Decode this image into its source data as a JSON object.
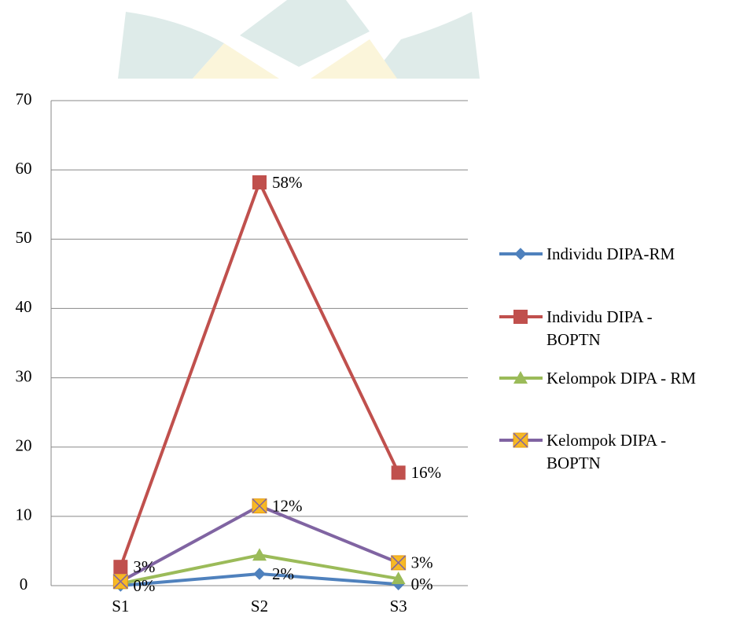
{
  "chart_data": {
    "type": "line",
    "categories": [
      "S1",
      "S2",
      "S3"
    ],
    "series": [
      {
        "name": "Individu DIPA-RM",
        "color": "#4f81bd",
        "marker": "diamond",
        "values": [
          0,
          1.7,
          0.2
        ],
        "value_labels": [
          "0%",
          "2%",
          "0%"
        ]
      },
      {
        "name": "Individu DIPA - BOPTN",
        "color": "#c0504d",
        "marker": "square",
        "values": [
          2.7,
          58.2,
          16.3
        ],
        "value_labels": [
          "3%",
          "58%",
          "16%"
        ]
      },
      {
        "name": "Kelompok DIPA - RM",
        "color": "#9bbb59",
        "marker": "triangle",
        "values": [
          0.3,
          4.4,
          1.0
        ],
        "value_labels": [
          null,
          null,
          null
        ]
      },
      {
        "name": "Kelompok DIPA - BOPTN",
        "color": "#8064a2",
        "marker": "x-square",
        "values": [
          0.6,
          11.5,
          3.3
        ],
        "value_labels": [
          null,
          "12%",
          "3%"
        ]
      }
    ],
    "ylim": [
      0,
      70
    ],
    "yticks": [
      0,
      10,
      20,
      30,
      40,
      50,
      60,
      70
    ],
    "grid": true,
    "legend": "right"
  }
}
